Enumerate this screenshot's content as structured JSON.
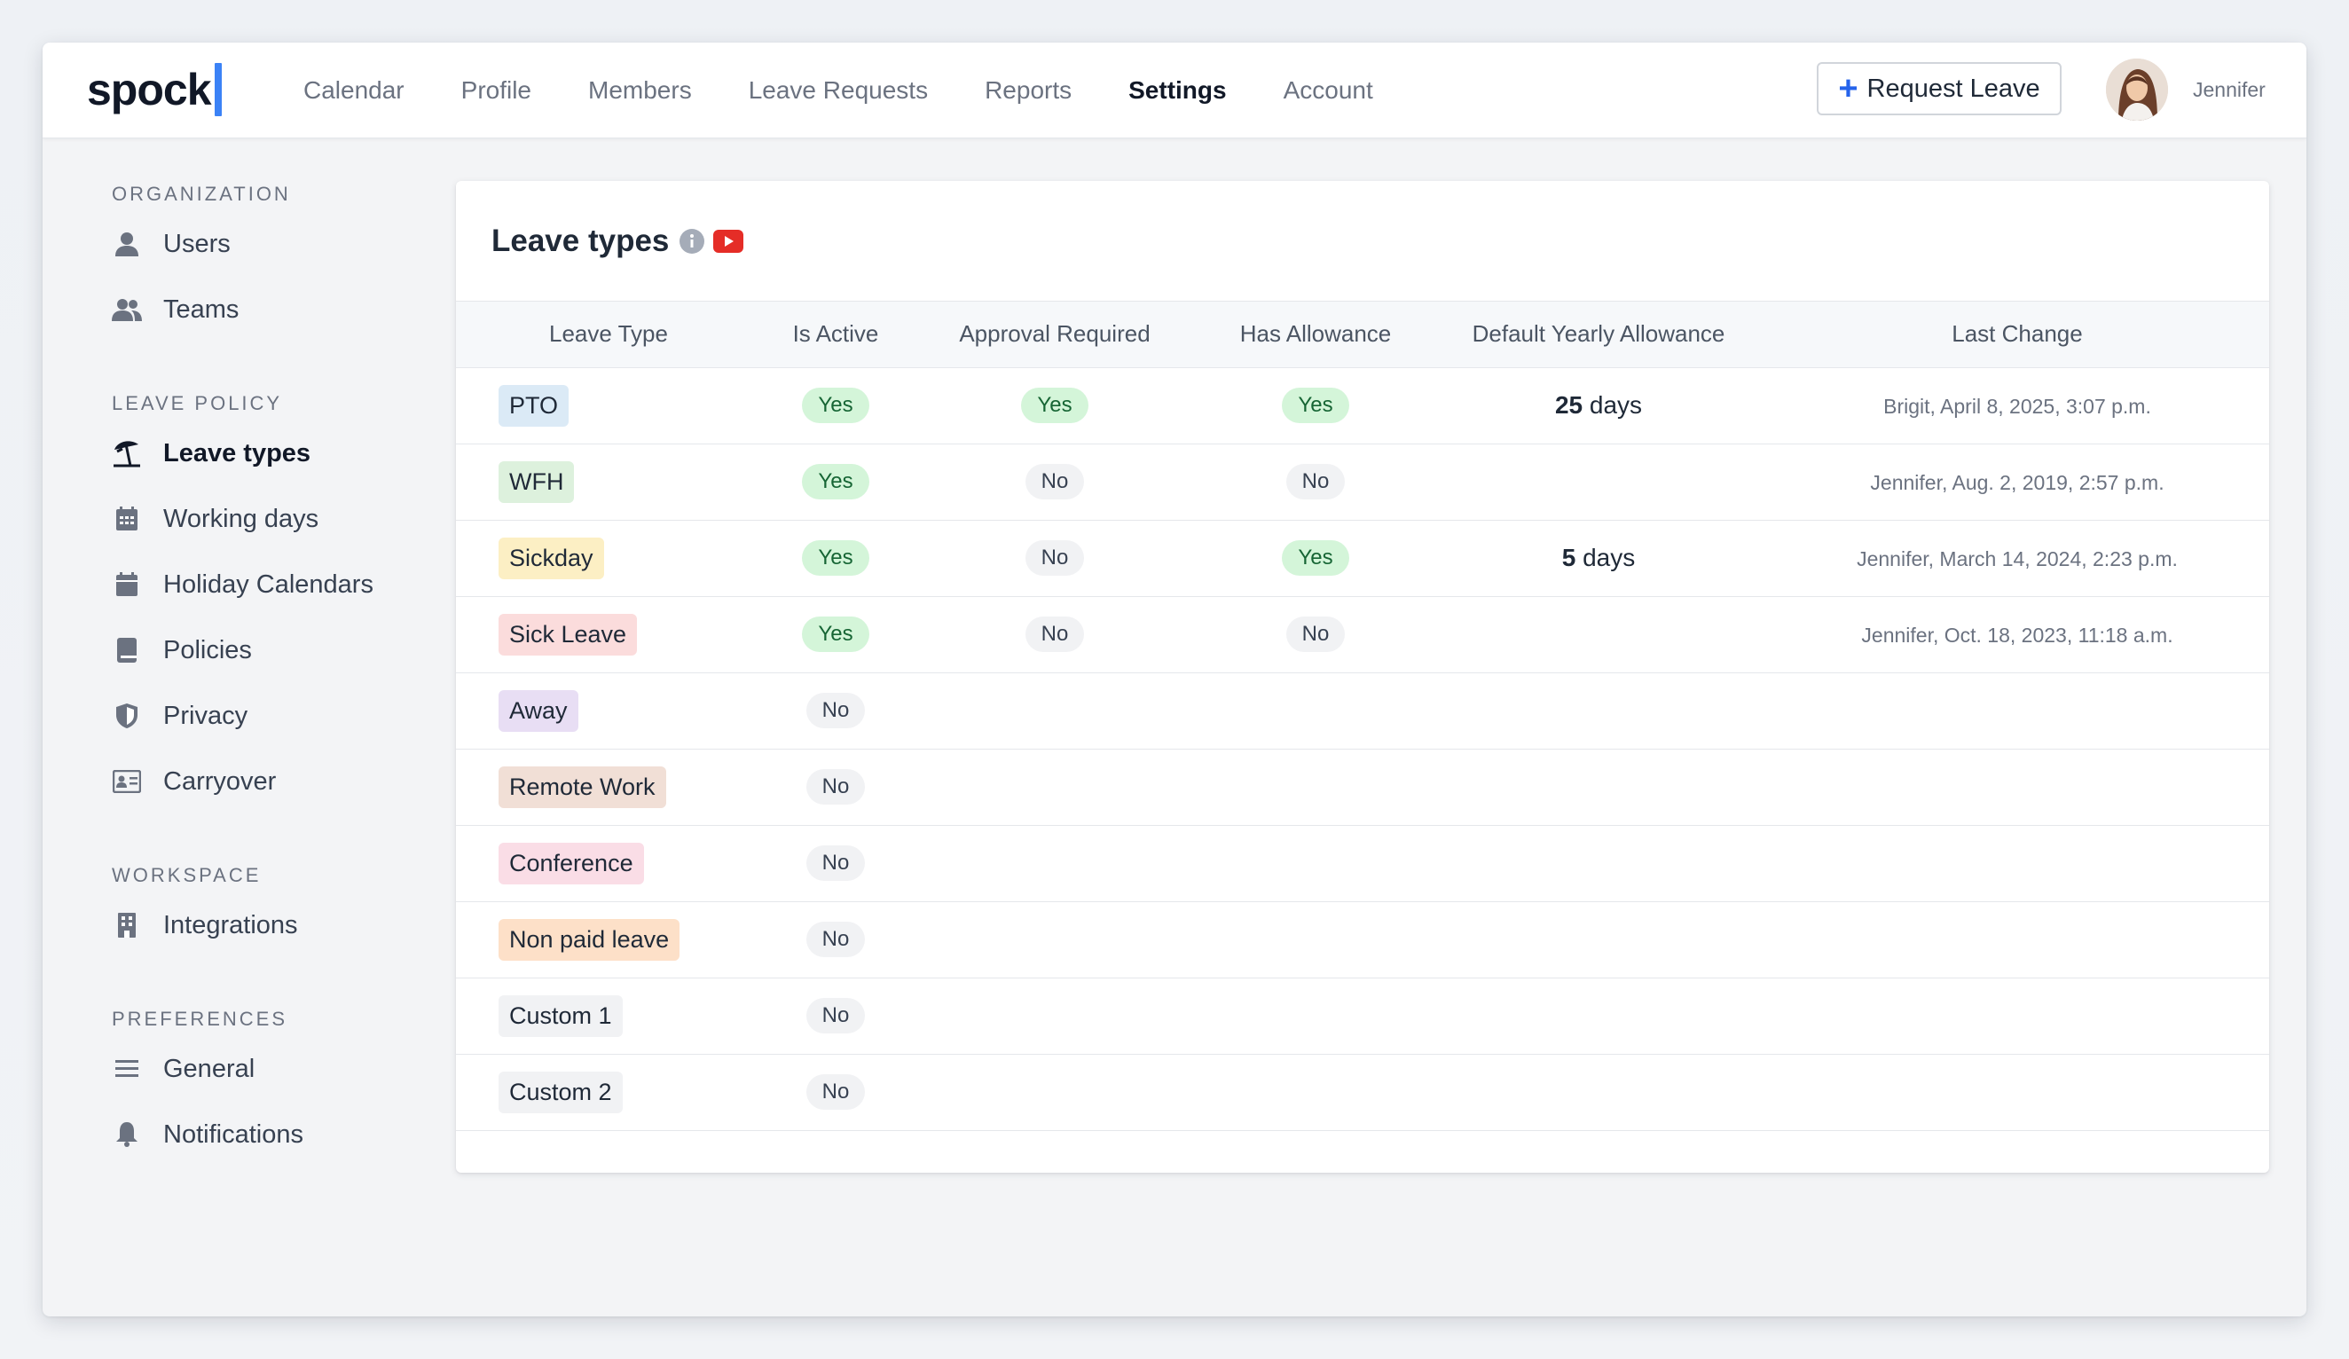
{
  "app": {
    "logo": "spock"
  },
  "nav": {
    "items": [
      {
        "label": "Calendar",
        "active": false
      },
      {
        "label": "Profile",
        "active": false
      },
      {
        "label": "Members",
        "active": false
      },
      {
        "label": "Leave Requests",
        "active": false
      },
      {
        "label": "Reports",
        "active": false
      },
      {
        "label": "Settings",
        "active": true
      },
      {
        "label": "Account",
        "active": false
      }
    ],
    "request_leave_label": "Request Leave",
    "user_name": "Jennifer"
  },
  "sidebar": {
    "sections": [
      {
        "label": "Organization",
        "items": [
          {
            "label": "Users",
            "icon": "user-icon"
          },
          {
            "label": "Teams",
            "icon": "users-icon"
          }
        ]
      },
      {
        "label": "Leave Policy",
        "items": [
          {
            "label": "Leave types",
            "icon": "beach-umbrella-icon",
            "active": true
          },
          {
            "label": "Working days",
            "icon": "calendar-grid-icon"
          },
          {
            "label": "Holiday Calendars",
            "icon": "calendar-icon"
          },
          {
            "label": "Policies",
            "icon": "book-icon"
          },
          {
            "label": "Privacy",
            "icon": "shield-icon"
          },
          {
            "label": "Carryover",
            "icon": "id-card-icon"
          }
        ]
      },
      {
        "label": "Workspace",
        "items": [
          {
            "label": "Integrations",
            "icon": "building-icon"
          }
        ]
      },
      {
        "label": "Preferences",
        "items": [
          {
            "label": "General",
            "icon": "menu-lines-icon"
          },
          {
            "label": "Notifications",
            "icon": "bell-icon"
          }
        ]
      }
    ]
  },
  "main": {
    "title": "Leave types",
    "table": {
      "headers": [
        "Leave Type",
        "Is Active",
        "Approval Required",
        "Has Allowance",
        "Default Yearly Allowance",
        "Last Change"
      ],
      "rows": [
        {
          "type": "PTO",
          "color": "#dbeaf6",
          "active": "Yes",
          "approval": "Yes",
          "allowance": "Yes",
          "yearly_num": "25",
          "yearly_unit": "days",
          "last": "Brigit, April 8, 2025, 3:07 p.m."
        },
        {
          "type": "WFH",
          "color": "#ddf1dd",
          "active": "Yes",
          "approval": "No",
          "allowance": "No",
          "yearly_num": "",
          "yearly_unit": "",
          "last": "Jennifer, Aug. 2, 2019, 2:57 p.m."
        },
        {
          "type": "Sickday",
          "color": "#fcefc4",
          "active": "Yes",
          "approval": "No",
          "allowance": "Yes",
          "yearly_num": "5",
          "yearly_unit": "days",
          "last": "Jennifer, March 14, 2024, 2:23 p.m."
        },
        {
          "type": "Sick Leave",
          "color": "#fbdcdc",
          "active": "Yes",
          "approval": "No",
          "allowance": "No",
          "yearly_num": "",
          "yearly_unit": "",
          "last": "Jennifer, Oct. 18, 2023, 11:18 a.m."
        },
        {
          "type": "Away",
          "color": "#e8def4",
          "active": "No",
          "approval": "",
          "allowance": "",
          "yearly_num": "",
          "yearly_unit": "",
          "last": ""
        },
        {
          "type": "Remote Work",
          "color": "#f1dfd6",
          "active": "No",
          "approval": "",
          "allowance": "",
          "yearly_num": "",
          "yearly_unit": "",
          "last": ""
        },
        {
          "type": "Conference",
          "color": "#fadde6",
          "active": "No",
          "approval": "",
          "allowance": "",
          "yearly_num": "",
          "yearly_unit": "",
          "last": ""
        },
        {
          "type": "Non paid leave",
          "color": "#fde0c8",
          "active": "No",
          "approval": "",
          "allowance": "",
          "yearly_num": "",
          "yearly_unit": "",
          "last": ""
        },
        {
          "type": "Custom 1",
          "color": "#f1f2f4",
          "active": "No",
          "approval": "",
          "allowance": "",
          "yearly_num": "",
          "yearly_unit": "",
          "last": ""
        },
        {
          "type": "Custom 2",
          "color": "#f1f2f4",
          "active": "No",
          "approval": "",
          "allowance": "",
          "yearly_num": "",
          "yearly_unit": "",
          "last": ""
        }
      ]
    }
  }
}
